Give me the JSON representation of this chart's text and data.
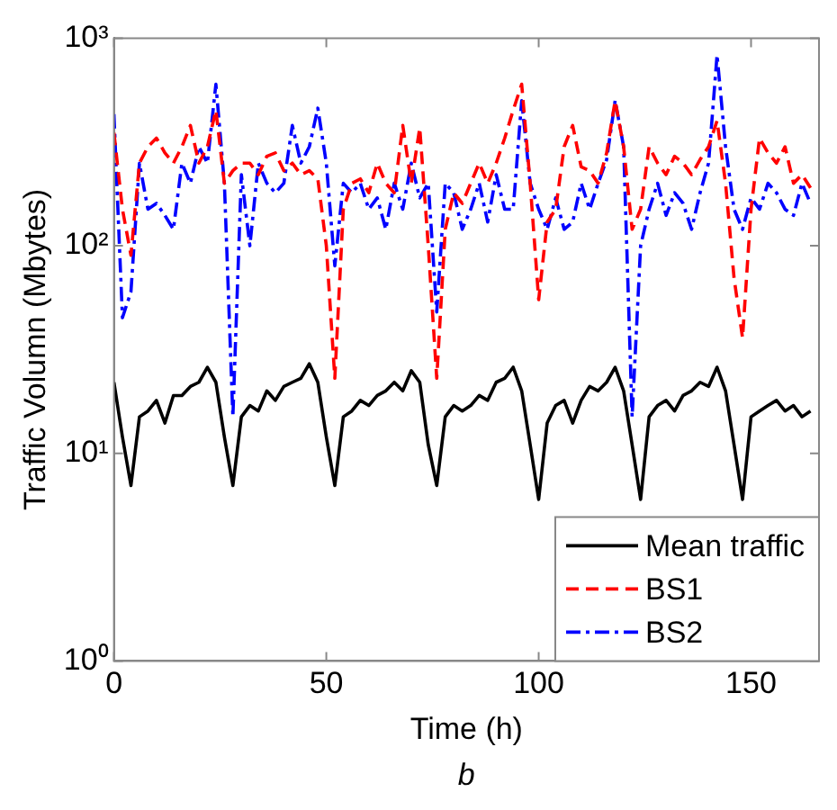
{
  "chart_data": {
    "type": "line",
    "xlabel": "Time (h)",
    "ylabel": "Traffic Volumn (Mbytes)",
    "annotations": [
      "b"
    ],
    "x": [
      0,
      2,
      4,
      6,
      8,
      10,
      12,
      14,
      16,
      18,
      20,
      22,
      24,
      26,
      28,
      30,
      32,
      34,
      36,
      38,
      40,
      42,
      44,
      46,
      48,
      50,
      52,
      54,
      56,
      58,
      60,
      62,
      64,
      66,
      68,
      70,
      72,
      74,
      76,
      78,
      80,
      82,
      84,
      86,
      88,
      90,
      92,
      94,
      96,
      98,
      100,
      102,
      104,
      106,
      108,
      110,
      112,
      114,
      116,
      118,
      120,
      122,
      124,
      126,
      128,
      130,
      132,
      134,
      136,
      138,
      140,
      142,
      144,
      146,
      148,
      150,
      152,
      154,
      156,
      158,
      160,
      162,
      164
    ],
    "xlim": [
      0,
      166
    ],
    "xticks": [
      0,
      50,
      100,
      150
    ],
    "log": "y",
    "ylim": [
      1,
      1000
    ],
    "yticks": [
      {
        "value": 1,
        "label": "10⁰"
      },
      {
        "value": 10,
        "label": "10¹"
      },
      {
        "value": 100,
        "label": "10²"
      },
      {
        "value": 1000,
        "label": "10³"
      }
    ],
    "grid": false,
    "legend": "bottom right",
    "marker": "none",
    "series": [
      {
        "name": "Mean traffic",
        "color": "#000000",
        "line_style": "solid",
        "values": [
          22,
          12,
          7,
          15,
          16,
          18,
          14,
          19,
          19,
          21,
          22,
          26,
          22,
          12,
          7,
          15,
          17,
          16,
          20,
          18,
          21,
          22,
          23,
          27,
          22,
          12,
          7,
          15,
          16,
          18,
          17,
          19,
          20,
          22,
          20,
          25,
          22,
          11,
          7,
          15,
          17,
          16,
          17,
          19,
          18,
          22,
          23,
          26,
          20,
          11,
          6,
          14,
          17,
          18,
          14,
          18,
          21,
          20,
          22,
          26,
          20,
          11,
          6,
          15,
          17,
          18,
          16,
          19,
          20,
          22,
          21,
          26,
          20,
          11,
          6,
          15,
          16,
          17,
          18,
          16,
          17,
          15,
          16
        ]
      },
      {
        "name": "BS1",
        "color": "#ff0000",
        "line_style": "dashed",
        "values": [
          350,
          150,
          90,
          250,
          300,
          330,
          280,
          250,
          300,
          380,
          250,
          300,
          450,
          200,
          230,
          250,
          250,
          220,
          270,
          280,
          230,
          250,
          220,
          230,
          210,
          100,
          23,
          150,
          200,
          210,
          180,
          250,
          200,
          180,
          380,
          200,
          370,
          100,
          23,
          120,
          180,
          160,
          200,
          250,
          200,
          250,
          330,
          450,
          600,
          200,
          55,
          130,
          150,
          300,
          380,
          240,
          230,
          200,
          280,
          500,
          300,
          120,
          150,
          300,
          250,
          220,
          270,
          250,
          220,
          260,
          300,
          400,
          200,
          70,
          36,
          150,
          330,
          280,
          250,
          300,
          200,
          220,
          190
        ]
      },
      {
        "name": "BS2",
        "color": "#0000ff",
        "line_style": "dashdot",
        "values": [
          430,
          45,
          60,
          250,
          150,
          160,
          140,
          120,
          250,
          200,
          300,
          250,
          600,
          200,
          15,
          220,
          100,
          250,
          200,
          180,
          200,
          380,
          250,
          300,
          460,
          250,
          80,
          200,
          180,
          200,
          150,
          170,
          120,
          200,
          150,
          250,
          170,
          200,
          48,
          200,
          180,
          120,
          150,
          200,
          130,
          220,
          150,
          150,
          500,
          200,
          150,
          120,
          170,
          120,
          130,
          200,
          150,
          200,
          260,
          500,
          300,
          15,
          100,
          150,
          200,
          140,
          180,
          160,
          120,
          180,
          250,
          830,
          300,
          150,
          120,
          170,
          150,
          200,
          180,
          150,
          140,
          200,
          160
        ]
      }
    ]
  }
}
